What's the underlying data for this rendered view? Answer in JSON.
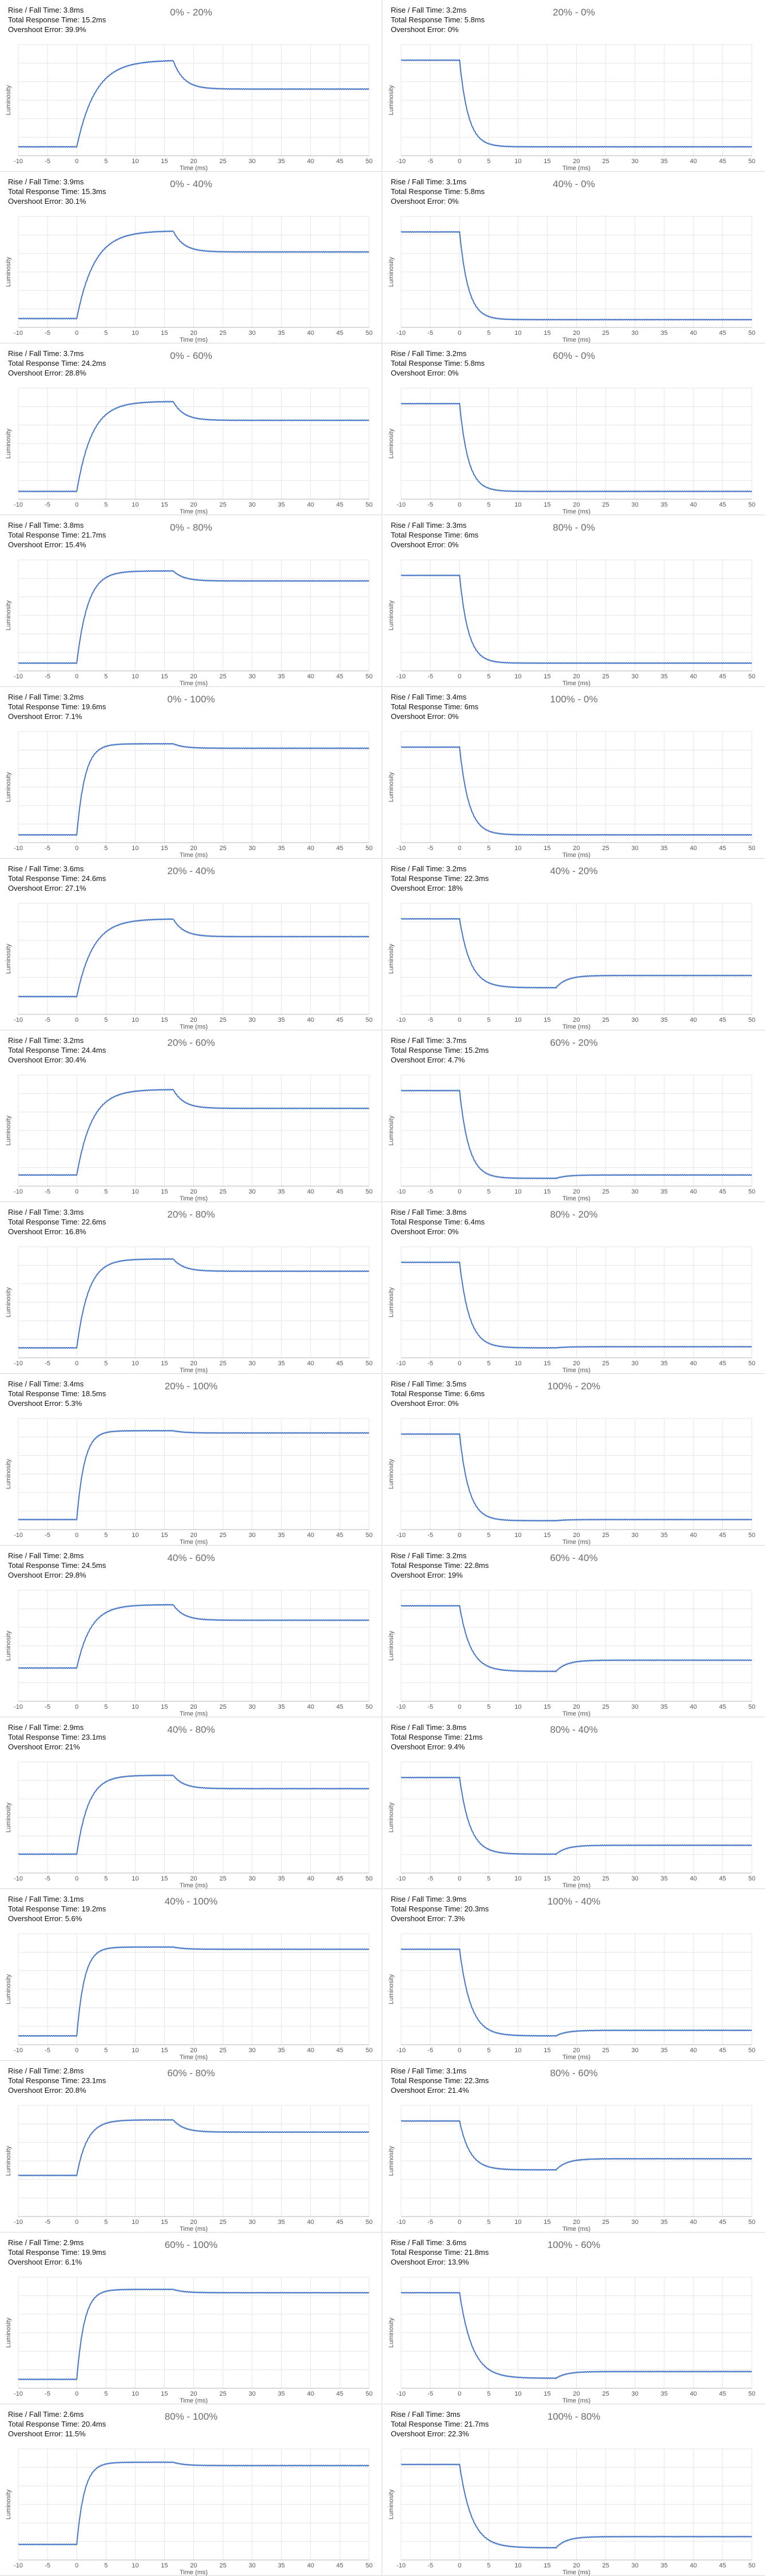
{
  "labels": {
    "rise_prefix": "Rise / Fall Time: ",
    "total_prefix": "Total Response Time: ",
    "overshoot_prefix": "Overshoot Error: "
  },
  "chart_data": [
    {
      "type": "line",
      "title": "0% - 20%",
      "rise_fall": "3.8ms",
      "total": "15.2ms",
      "overshoot": "39.9%",
      "kind": "rise",
      "base": 0.08,
      "plateau": 0.86,
      "settle": 0.6,
      "tau": 3.2,
      "xlabel": "Time (ms)",
      "ylabel": "Luminosity",
      "xlim": [
        -10,
        50
      ],
      "xticks": [
        -10,
        -5,
        0,
        5,
        10,
        15,
        20,
        25,
        30,
        35,
        40,
        45,
        50
      ]
    },
    {
      "type": "line",
      "title": "20% - 0%",
      "rise_fall": "3.2ms",
      "total": "5.8ms",
      "overshoot": "0%",
      "kind": "fall",
      "base": 0.08,
      "plateau": 0.86,
      "settle": 0.08,
      "tau": 1.5,
      "xlabel": "Time (ms)",
      "ylabel": "Luminosity",
      "xlim": [
        -10,
        50
      ],
      "xticks": [
        -10,
        -5,
        0,
        5,
        10,
        15,
        20,
        25,
        30,
        35,
        40,
        45,
        50
      ]
    },
    {
      "type": "line",
      "title": "0% - 40%",
      "rise_fall": "3.9ms",
      "total": "15.3ms",
      "overshoot": "30.1%",
      "kind": "rise",
      "base": 0.08,
      "plateau": 0.87,
      "settle": 0.68,
      "tau": 3.0,
      "xlabel": "Time (ms)",
      "ylabel": "Luminosity",
      "xlim": [
        -10,
        50
      ],
      "xticks": [
        -10,
        -5,
        0,
        5,
        10,
        15,
        20,
        25,
        30,
        35,
        40,
        45,
        50
      ]
    },
    {
      "type": "line",
      "title": "40% - 0%",
      "rise_fall": "3.1ms",
      "total": "5.8ms",
      "overshoot": "0%",
      "kind": "fall",
      "base": 0.07,
      "plateau": 0.86,
      "settle": 0.07,
      "tau": 1.5,
      "xlabel": "Time (ms)",
      "ylabel": "Luminosity",
      "xlim": [
        -10,
        50
      ],
      "xticks": [
        -10,
        -5,
        0,
        5,
        10,
        15,
        20,
        25,
        30,
        35,
        40,
        45,
        50
      ]
    },
    {
      "type": "line",
      "title": "0% - 60%",
      "rise_fall": "3.7ms",
      "total": "24.2ms",
      "overshoot": "28.8%",
      "kind": "rise",
      "base": 0.07,
      "plateau": 0.88,
      "settle": 0.71,
      "tau": 2.6,
      "xlabel": "Time (ms)",
      "ylabel": "Luminosity",
      "xlim": [
        -10,
        50
      ],
      "xticks": [
        -10,
        -5,
        0,
        5,
        10,
        15,
        20,
        25,
        30,
        35,
        40,
        45,
        50
      ]
    },
    {
      "type": "line",
      "title": "60% - 0%",
      "rise_fall": "3.2ms",
      "total": "5.8ms",
      "overshoot": "0%",
      "kind": "fall",
      "base": 0.07,
      "plateau": 0.86,
      "settle": 0.07,
      "tau": 1.5,
      "xlabel": "Time (ms)",
      "ylabel": "Luminosity",
      "xlim": [
        -10,
        50
      ],
      "xticks": [
        -10,
        -5,
        0,
        5,
        10,
        15,
        20,
        25,
        30,
        35,
        40,
        45,
        50
      ]
    },
    {
      "type": "line",
      "title": "0% - 80%",
      "rise_fall": "3.8ms",
      "total": "21.7ms",
      "overshoot": "15.4%",
      "kind": "rise",
      "base": 0.07,
      "plateau": 0.9,
      "settle": 0.81,
      "tau": 1.9,
      "xlabel": "Time (ms)",
      "ylabel": "Luminosity",
      "xlim": [
        -10,
        50
      ],
      "xticks": [
        -10,
        -5,
        0,
        5,
        10,
        15,
        20,
        25,
        30,
        35,
        40,
        45,
        50
      ]
    },
    {
      "type": "line",
      "title": "80% - 0%",
      "rise_fall": "3.3ms",
      "total": "6ms",
      "overshoot": "0%",
      "kind": "fall",
      "base": 0.07,
      "plateau": 0.86,
      "settle": 0.07,
      "tau": 1.5,
      "xlabel": "Time (ms)",
      "ylabel": "Luminosity",
      "xlim": [
        -10,
        50
      ],
      "xticks": [
        -10,
        -5,
        0,
        5,
        10,
        15,
        20,
        25,
        30,
        35,
        40,
        45,
        50
      ]
    },
    {
      "type": "line",
      "title": "0% - 100%",
      "rise_fall": "3.2ms",
      "total": "19.6ms",
      "overshoot": "7.1%",
      "kind": "rise",
      "base": 0.07,
      "plateau": 0.89,
      "settle": 0.85,
      "tau": 1.4,
      "xlabel": "Time (ms)",
      "ylabel": "Luminosity",
      "xlim": [
        -10,
        50
      ],
      "xticks": [
        -10,
        -5,
        0,
        5,
        10,
        15,
        20,
        25,
        30,
        35,
        40,
        45,
        50
      ]
    },
    {
      "type": "line",
      "title": "100% - 0%",
      "rise_fall": "3.4ms",
      "total": "6ms",
      "overshoot": "0%",
      "kind": "fall",
      "base": 0.07,
      "plateau": 0.86,
      "settle": 0.07,
      "tau": 1.6,
      "xlabel": "Time (ms)",
      "ylabel": "Luminosity",
      "xlim": [
        -10,
        50
      ],
      "xticks": [
        -10,
        -5,
        0,
        5,
        10,
        15,
        20,
        25,
        30,
        35,
        40,
        45,
        50
      ]
    },
    {
      "type": "line",
      "title": "20% - 40%",
      "rise_fall": "3.6ms",
      "total": "24.6ms",
      "overshoot": "27.1%",
      "kind": "rise",
      "base": 0.16,
      "plateau": 0.86,
      "settle": 0.7,
      "tau": 2.8,
      "xlabel": "Time (ms)",
      "ylabel": "Luminosity",
      "xlim": [
        -10,
        50
      ],
      "xticks": [
        -10,
        -5,
        0,
        5,
        10,
        15,
        20,
        25,
        30,
        35,
        40,
        45,
        50
      ]
    },
    {
      "type": "line",
      "title": "40% - 20%",
      "rise_fall": "3.2ms",
      "total": "22.3ms",
      "overshoot": "18%",
      "kind": "fall",
      "base": 0.24,
      "plateau": 0.86,
      "settle": 0.35,
      "tau": 1.9,
      "xlabel": "Time (ms)",
      "ylabel": "Luminosity",
      "xlim": [
        -10,
        50
      ],
      "xticks": [
        -10,
        -5,
        0,
        5,
        10,
        15,
        20,
        25,
        30,
        35,
        40,
        45,
        50
      ]
    },
    {
      "type": "line",
      "title": "20% - 60%",
      "rise_fall": "3.2ms",
      "total": "24.4ms",
      "overshoot": "30.4%",
      "kind": "rise",
      "base": 0.1,
      "plateau": 0.87,
      "settle": 0.7,
      "tau": 2.6,
      "xlabel": "Time (ms)",
      "ylabel": "Luminosity",
      "xlim": [
        -10,
        50
      ],
      "xticks": [
        -10,
        -5,
        0,
        5,
        10,
        15,
        20,
        25,
        30,
        35,
        40,
        45,
        50
      ]
    },
    {
      "type": "line",
      "title": "60% - 20%",
      "rise_fall": "3.7ms",
      "total": "15.2ms",
      "overshoot": "4.7%",
      "kind": "fall",
      "base": 0.07,
      "plateau": 0.86,
      "settle": 0.1,
      "tau": 1.6,
      "xlabel": "Time (ms)",
      "ylabel": "Luminosity",
      "xlim": [
        -10,
        50
      ],
      "xticks": [
        -10,
        -5,
        0,
        5,
        10,
        15,
        20,
        25,
        30,
        35,
        40,
        45,
        50
      ]
    },
    {
      "type": "line",
      "title": "20% - 80%",
      "rise_fall": "3.3ms",
      "total": "22.6ms",
      "overshoot": "16.8%",
      "kind": "rise",
      "base": 0.09,
      "plateau": 0.89,
      "settle": 0.78,
      "tau": 2.0,
      "xlabel": "Time (ms)",
      "ylabel": "Luminosity",
      "xlim": [
        -10,
        50
      ],
      "xticks": [
        -10,
        -5,
        0,
        5,
        10,
        15,
        20,
        25,
        30,
        35,
        40,
        45,
        50
      ]
    },
    {
      "type": "line",
      "title": "80% - 20%",
      "rise_fall": "3.8ms",
      "total": "6.4ms",
      "overshoot": "0%",
      "kind": "fall",
      "base": 0.09,
      "plateau": 0.86,
      "settle": 0.1,
      "tau": 1.7,
      "xlabel": "Time (ms)",
      "ylabel": "Luminosity",
      "xlim": [
        -10,
        50
      ],
      "xticks": [
        -10,
        -5,
        0,
        5,
        10,
        15,
        20,
        25,
        30,
        35,
        40,
        45,
        50
      ]
    },
    {
      "type": "line",
      "title": "20% - 100%",
      "rise_fall": "3.4ms",
      "total": "18.5ms",
      "overshoot": "5.3%",
      "kind": "rise",
      "base": 0.09,
      "plateau": 0.89,
      "settle": 0.87,
      "tau": 1.3,
      "xlabel": "Time (ms)",
      "ylabel": "Luminosity",
      "xlim": [
        -10,
        50
      ],
      "xticks": [
        -10,
        -5,
        0,
        5,
        10,
        15,
        20,
        25,
        30,
        35,
        40,
        45,
        50
      ]
    },
    {
      "type": "line",
      "title": "100% - 20%",
      "rise_fall": "3.5ms",
      "total": "6.6ms",
      "overshoot": "0%",
      "kind": "fall",
      "base": 0.08,
      "plateau": 0.86,
      "settle": 0.09,
      "tau": 1.6,
      "xlabel": "Time (ms)",
      "ylabel": "Luminosity",
      "xlim": [
        -10,
        50
      ],
      "xticks": [
        -10,
        -5,
        0,
        5,
        10,
        15,
        20,
        25,
        30,
        35,
        40,
        45,
        50
      ]
    },
    {
      "type": "line",
      "title": "40% - 60%",
      "rise_fall": "2.8ms",
      "total": "24.5ms",
      "overshoot": "29.8%",
      "kind": "rise",
      "base": 0.3,
      "plateau": 0.87,
      "settle": 0.73,
      "tau": 2.4,
      "xlabel": "Time (ms)",
      "ylabel": "Luminosity",
      "xlim": [
        -10,
        50
      ],
      "xticks": [
        -10,
        -5,
        0,
        5,
        10,
        15,
        20,
        25,
        30,
        35,
        40,
        45,
        50
      ]
    },
    {
      "type": "line",
      "title": "60% - 40%",
      "rise_fall": "3.2ms",
      "total": "22.8ms",
      "overshoot": "19%",
      "kind": "fall",
      "base": 0.27,
      "plateau": 0.86,
      "settle": 0.37,
      "tau": 1.9,
      "xlabel": "Time (ms)",
      "ylabel": "Luminosity",
      "xlim": [
        -10,
        50
      ],
      "xticks": [
        -10,
        -5,
        0,
        5,
        10,
        15,
        20,
        25,
        30,
        35,
        40,
        45,
        50
      ]
    },
    {
      "type": "line",
      "title": "40% - 80%",
      "rise_fall": "2.9ms",
      "total": "23.1ms",
      "overshoot": "21%",
      "kind": "rise",
      "base": 0.17,
      "plateau": 0.88,
      "settle": 0.76,
      "tau": 2.0,
      "xlabel": "Time (ms)",
      "ylabel": "Luminosity",
      "xlim": [
        -10,
        50
      ],
      "xticks": [
        -10,
        -5,
        0,
        5,
        10,
        15,
        20,
        25,
        30,
        35,
        40,
        45,
        50
      ]
    },
    {
      "type": "line",
      "title": "80% - 40%",
      "rise_fall": "3.8ms",
      "total": "21ms",
      "overshoot": "9.4%",
      "kind": "fall",
      "base": 0.17,
      "plateau": 0.86,
      "settle": 0.25,
      "tau": 1.8,
      "xlabel": "Time (ms)",
      "ylabel": "Luminosity",
      "xlim": [
        -10,
        50
      ],
      "xticks": [
        -10,
        -5,
        0,
        5,
        10,
        15,
        20,
        25,
        30,
        35,
        40,
        45,
        50
      ]
    },
    {
      "type": "line",
      "title": "40% - 100%",
      "rise_fall": "3.1ms",
      "total": "19.2ms",
      "overshoot": "5.6%",
      "kind": "rise",
      "base": 0.08,
      "plateau": 0.88,
      "settle": 0.86,
      "tau": 1.3,
      "xlabel": "Time (ms)",
      "ylabel": "Luminosity",
      "xlim": [
        -10,
        50
      ],
      "xticks": [
        -10,
        -5,
        0,
        5,
        10,
        15,
        20,
        25,
        30,
        35,
        40,
        45,
        50
      ]
    },
    {
      "type": "line",
      "title": "100% - 40%",
      "rise_fall": "3.9ms",
      "total": "20.3ms",
      "overshoot": "7.3%",
      "kind": "fall",
      "base": 0.08,
      "plateau": 0.86,
      "settle": 0.13,
      "tau": 1.9,
      "xlabel": "Time (ms)",
      "ylabel": "Luminosity",
      "xlim": [
        -10,
        50
      ],
      "xticks": [
        -10,
        -5,
        0,
        5,
        10,
        15,
        20,
        25,
        30,
        35,
        40,
        45,
        50
      ]
    },
    {
      "type": "line",
      "title": "60% - 80%",
      "rise_fall": "2.8ms",
      "total": "23.1ms",
      "overshoot": "20.8%",
      "kind": "rise",
      "base": 0.37,
      "plateau": 0.87,
      "settle": 0.76,
      "tau": 1.8,
      "xlabel": "Time (ms)",
      "ylabel": "Luminosity",
      "xlim": [
        -10,
        50
      ],
      "xticks": [
        -10,
        -5,
        0,
        5,
        10,
        15,
        20,
        25,
        30,
        35,
        40,
        45,
        50
      ]
    },
    {
      "type": "line",
      "title": "80% - 60%",
      "rise_fall": "3.1ms",
      "total": "22.3ms",
      "overshoot": "21.4%",
      "kind": "fall",
      "base": 0.42,
      "plateau": 0.86,
      "settle": 0.52,
      "tau": 1.8,
      "xlabel": "Time (ms)",
      "ylabel": "Luminosity",
      "xlim": [
        -10,
        50
      ],
      "xticks": [
        -10,
        -5,
        0,
        5,
        10,
        15,
        20,
        25,
        30,
        35,
        40,
        45,
        50
      ]
    },
    {
      "type": "line",
      "title": "60% - 100%",
      "rise_fall": "2.9ms",
      "total": "19.9ms",
      "overshoot": "6.1%",
      "kind": "rise",
      "base": 0.08,
      "plateau": 0.89,
      "settle": 0.86,
      "tau": 1.3,
      "xlabel": "Time (ms)",
      "ylabel": "Luminosity",
      "xlim": [
        -10,
        50
      ],
      "xticks": [
        -10,
        -5,
        0,
        5,
        10,
        15,
        20,
        25,
        30,
        35,
        40,
        45,
        50
      ]
    },
    {
      "type": "line",
      "title": "100% - 60%",
      "rise_fall": "3.6ms",
      "total": "21.8ms",
      "overshoot": "13.9%",
      "kind": "fall",
      "base": 0.09,
      "plateau": 0.86,
      "settle": 0.15,
      "tau": 2.2,
      "xlabel": "Time (ms)",
      "ylabel": "Luminosity",
      "xlim": [
        -10,
        50
      ],
      "xticks": [
        -10,
        -5,
        0,
        5,
        10,
        15,
        20,
        25,
        30,
        35,
        40,
        45,
        50
      ]
    },
    {
      "type": "line",
      "title": "80% - 100%",
      "rise_fall": "2.6ms",
      "total": "20.4ms",
      "overshoot": "11.5%",
      "kind": "rise",
      "base": 0.14,
      "plateau": 0.88,
      "settle": 0.85,
      "tau": 1.3,
      "xlabel": "Time (ms)",
      "ylabel": "Luminosity",
      "xlim": [
        -10,
        50
      ],
      "xticks": [
        -10,
        -5,
        0,
        5,
        10,
        15,
        20,
        25,
        30,
        35,
        40,
        45,
        50
      ]
    },
    {
      "type": "line",
      "title": "100% - 80%",
      "rise_fall": "3ms",
      "total": "21.7ms",
      "overshoot": "22.3%",
      "kind": "fall",
      "base": 0.11,
      "plateau": 0.86,
      "settle": 0.21,
      "tau": 2.1,
      "xlabel": "Time (ms)",
      "ylabel": "Luminosity",
      "xlim": [
        -10,
        50
      ],
      "xticks": [
        -10,
        -5,
        0,
        5,
        10,
        15,
        20,
        25,
        30,
        35,
        40,
        45,
        50
      ]
    }
  ],
  "colors": {
    "line": "#4a78c8",
    "grid": "#e6e6e6",
    "axis": "#b5b5b5",
    "tick_text": "#555555",
    "title_text": "#6a6a6a",
    "panel_border": "#d8d8d8"
  }
}
